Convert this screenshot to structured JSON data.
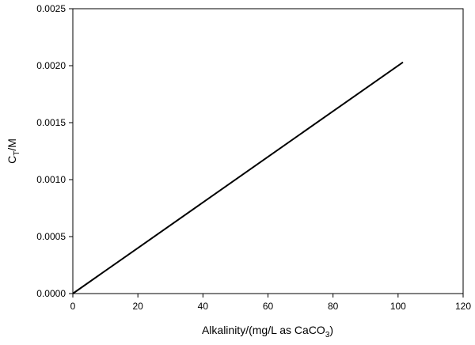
{
  "chart_data": {
    "type": "line",
    "title": "",
    "xlabel": {
      "main": "Alkalinity/(mg/L as CaCO",
      "sub": "3",
      "suffix": ")"
    },
    "ylabel": {
      "main": "C",
      "sub": "T",
      "suffix": "/M"
    },
    "xlim": [
      0,
      120
    ],
    "ylim": [
      0,
      0.0025
    ],
    "xticks": [
      "0",
      "20",
      "40",
      "60",
      "80",
      "100",
      "120"
    ],
    "yticks": [
      "0.0000",
      "0.0005",
      "0.0010",
      "0.0015",
      "0.0020",
      "0.0025"
    ],
    "grid": false,
    "legend": "none",
    "series": [
      {
        "x": [
          0,
          20,
          40,
          60,
          80,
          101.5
        ],
        "y": [
          0.0,
          0.0004,
          0.0008,
          0.0012,
          0.0016,
          0.00203
        ],
        "color": "#000000"
      }
    ]
  }
}
